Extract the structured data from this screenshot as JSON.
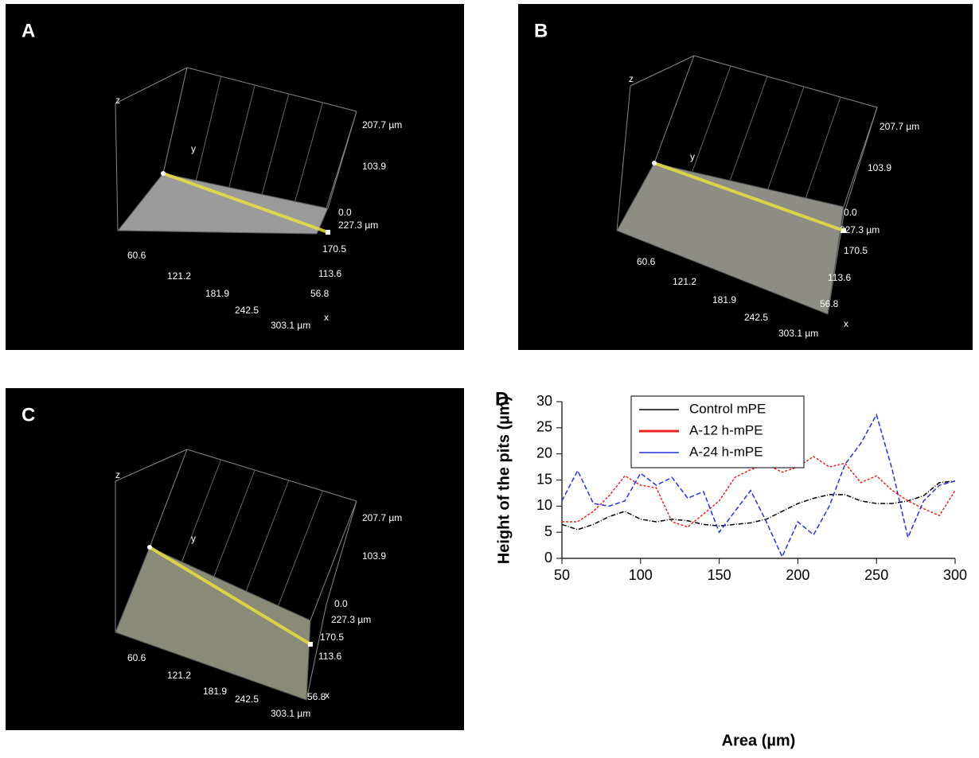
{
  "panels": [
    {
      "label": "A",
      "texts": [
        "z",
        "y",
        "x",
        "207.7 µm",
        "103.9",
        "0.0",
        "227.3 µm",
        "170.5",
        "113.6",
        "56.8",
        "60.6",
        "121.2",
        "181.9",
        "242.5",
        "303.1 µm"
      ]
    },
    {
      "label": "B",
      "texts": [
        "z",
        "y",
        "x",
        "207.7 µm",
        "103.9",
        "0.0",
        "227.3 µm",
        "170.5",
        "113.6",
        "56.8",
        "60.6",
        "121.2",
        "181.9",
        "242.5",
        "303.1 µm"
      ]
    },
    {
      "label": "C",
      "texts": [
        "z",
        "y",
        "x",
        "207.7 µm",
        "103.9",
        "0.0",
        "227.3 µm",
        "170.5",
        "113.6",
        "56.8",
        "60.6",
        "121.2",
        "181.9",
        "242.5",
        "303.1 µm"
      ]
    }
  ],
  "chart_data": {
    "type": "line",
    "panel_label": "D",
    "xlabel": "Area (µm)",
    "ylabel": "Height of the pits (µm)",
    "x": [
      50,
      60,
      70,
      80,
      90,
      100,
      110,
      120,
      130,
      140,
      150,
      160,
      170,
      180,
      190,
      200,
      210,
      220,
      230,
      240,
      250,
      260,
      270,
      280,
      290,
      300
    ],
    "series": [
      {
        "name": "Control mPE",
        "color": "#000000",
        "values": [
          6.5,
          5.5,
          6.5,
          8,
          9,
          7.5,
          7,
          7.5,
          7.2,
          6.5,
          6.2,
          6.5,
          6.8,
          7.5,
          9,
          10.5,
          11.5,
          12.2,
          12.2,
          11,
          10.5,
          10.5,
          11,
          12,
          14.5,
          14.8
        ]
      },
      {
        "name": "A-12 h-mPE",
        "color": "#e8231c",
        "values": [
          7,
          7,
          9,
          12,
          15.8,
          14,
          13.5,
          7,
          6,
          8.5,
          11,
          15.5,
          17,
          18,
          16.5,
          17.5,
          19.5,
          17.5,
          18.2,
          14.5,
          15.8,
          13,
          11,
          9.5,
          8.2,
          13
        ]
      },
      {
        "name": "A-24 h-mPE",
        "color": "#2233dd",
        "values": [
          11,
          16.8,
          10.5,
          10,
          11,
          16.3,
          14,
          15.5,
          11.5,
          12.8,
          5,
          9,
          13,
          7,
          0.3,
          7,
          4.5,
          10,
          18,
          22,
          27.5,
          17,
          4,
          11,
          14,
          14.8
        ]
      }
    ],
    "xlim": [
      50,
      300
    ],
    "ylim": [
      0,
      30
    ],
    "xticks": [
      50,
      100,
      150,
      200,
      250,
      300
    ],
    "yticks": [
      0,
      5,
      10,
      15,
      20,
      25,
      30
    ]
  }
}
